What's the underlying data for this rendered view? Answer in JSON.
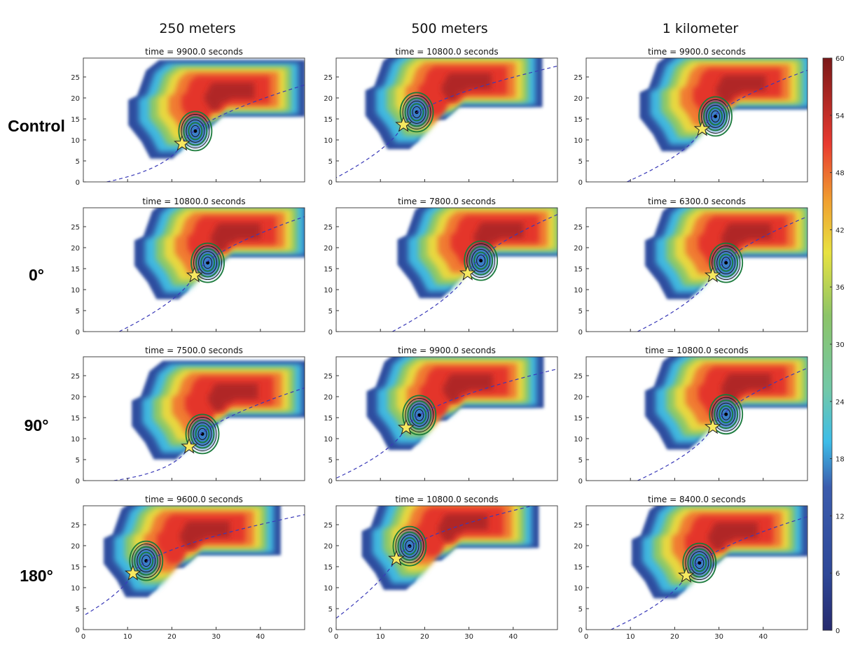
{
  "column_titles": [
    "250 meters",
    "500 meters",
    "1 kilometer"
  ],
  "row_labels": [
    "Control",
    "0°",
    "90°",
    "180°"
  ],
  "chart_data": {
    "type": "heatmap",
    "description_units": {
      "x": "km",
      "y": "km",
      "color": "dBZ"
    },
    "xlim": [
      0,
      50
    ],
    "ylim": [
      0,
      29.5
    ],
    "xticks": [
      0,
      10,
      20,
      30,
      40
    ],
    "yticks": [
      0,
      5,
      10,
      15,
      20,
      25
    ],
    "colorbar": {
      "range": [
        0,
        60
      ],
      "ticks": [
        0,
        6,
        12,
        18,
        24,
        30,
        36,
        42,
        48,
        54,
        60
      ]
    },
    "panels": [
      {
        "row": 0,
        "col": 0,
        "title": "time = 9900.0 seconds",
        "star": [
          22.3,
          9.1
        ]
      },
      {
        "row": 0,
        "col": 1,
        "title": "time = 10800.0 seconds",
        "star": [
          15.2,
          13.6
        ]
      },
      {
        "row": 0,
        "col": 2,
        "title": "time = 9900.0 seconds",
        "star": [
          26.2,
          12.6
        ]
      },
      {
        "row": 1,
        "col": 0,
        "title": "time = 10800.0 seconds",
        "star": [
          25.1,
          13.4
        ]
      },
      {
        "row": 1,
        "col": 1,
        "title": "time = 7800.0 seconds",
        "star": [
          29.7,
          13.9
        ]
      },
      {
        "row": 1,
        "col": 2,
        "title": "time = 6300.0 seconds",
        "star": [
          28.6,
          13.4
        ]
      },
      {
        "row": 2,
        "col": 0,
        "title": "time = 7500.0 seconds",
        "star": [
          23.9,
          8.1
        ]
      },
      {
        "row": 2,
        "col": 1,
        "title": "time = 9900.0 seconds",
        "star": [
          15.8,
          12.6
        ]
      },
      {
        "row": 2,
        "col": 2,
        "title": "time = 10800.0 seconds",
        "star": [
          28.6,
          12.8
        ]
      },
      {
        "row": 3,
        "col": 0,
        "title": "time = 9600.0 seconds",
        "star": [
          11.2,
          13.4
        ]
      },
      {
        "row": 3,
        "col": 1,
        "title": "time = 10800.0 seconds",
        "star": [
          13.6,
          16.9
        ]
      },
      {
        "row": 3,
        "col": 2,
        "title": "time = 8400.0 seconds",
        "star": [
          22.6,
          12.9
        ]
      }
    ]
  }
}
